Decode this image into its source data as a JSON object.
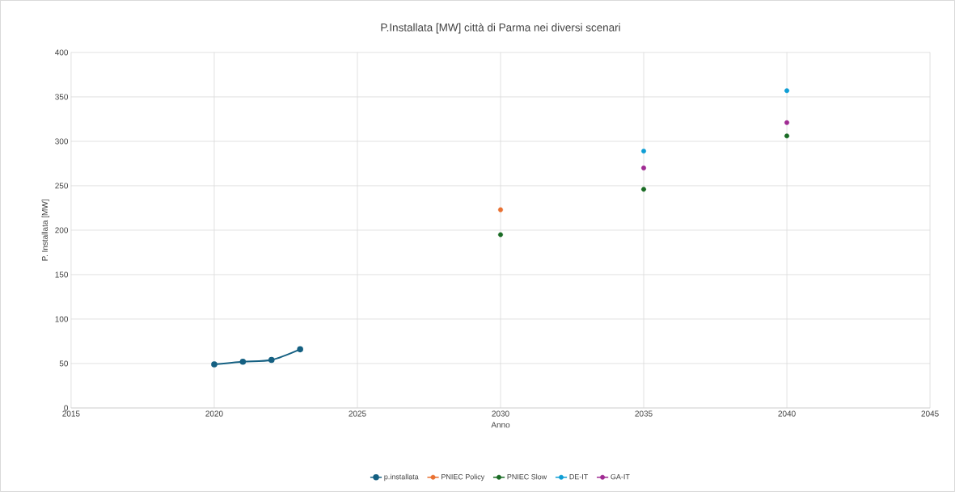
{
  "chart_data": {
    "type": "scatter",
    "title": "P.Installata [MW] città di Parma nei diversi scenari",
    "xlabel": "Anno",
    "ylabel": "P. Installata [MW]",
    "series": [
      {
        "name": "p.installata",
        "type": "line",
        "color": "#156082",
        "x": [
          2020,
          2021,
          2022,
          2023
        ],
        "values": [
          49,
          52,
          54,
          66
        ]
      },
      {
        "name": "PNIEC Policy",
        "color": "#e97132",
        "x": [
          2030
        ],
        "values": [
          223
        ]
      },
      {
        "name": "PNIEC Slow",
        "color": "#196b24",
        "x": [
          2030,
          2035,
          2040
        ],
        "values": [
          195,
          246,
          306
        ]
      },
      {
        "name": "DE-IT",
        "color": "#0f9ed5",
        "x": [
          2035,
          2040
        ],
        "values": [
          289,
          357
        ]
      },
      {
        "name": "GA-IT",
        "color": "#a02b93",
        "x": [
          2035,
          2040
        ],
        "values": [
          270,
          321
        ]
      }
    ],
    "xlim": [
      2015,
      2045
    ],
    "xticks": [
      2015,
      2020,
      2025,
      2030,
      2035,
      2040,
      2045
    ],
    "ylim": [
      0,
      400
    ],
    "yticks": [
      0,
      50,
      100,
      150,
      200,
      250,
      300,
      350,
      400
    ],
    "grid": true,
    "legend": "bottom",
    "marker": "circle"
  }
}
